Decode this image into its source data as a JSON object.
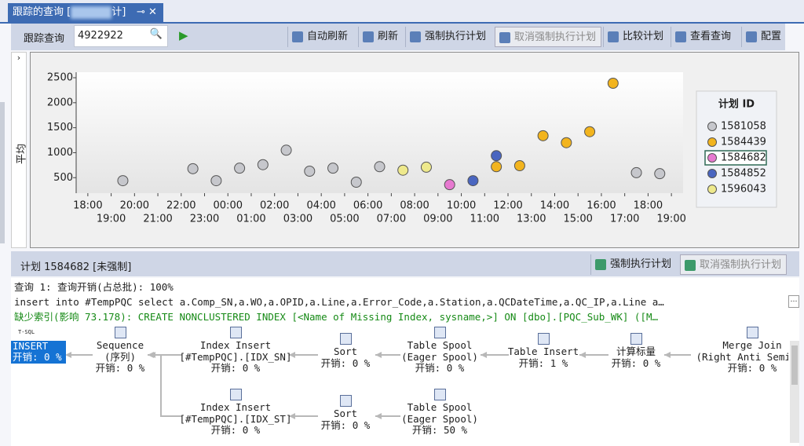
{
  "tab": {
    "title": "跟踪的查询 [",
    "title_end": "计]"
  },
  "toolbar": {
    "label": "跟踪查询",
    "query_id": "4922922",
    "buttons": [
      "自动刷新",
      "刷新",
      "强制执行计划",
      "取消强制执行计划",
      "比较计划",
      "查看查询",
      "配置"
    ]
  },
  "chart_data": {
    "type": "scatter",
    "y_label": "平均",
    "legend_title": "计划 ID",
    "legend_selected": 2,
    "xlim": [
      17.5,
      43.5
    ],
    "ylim": [
      190,
      2610
    ],
    "grid": false,
    "xticks": [
      {
        "value": 18,
        "label": "18:00"
      },
      {
        "value": 19,
        "label": "19:00"
      },
      {
        "value": 20,
        "label": "20:00"
      },
      {
        "value": 21,
        "label": "21:00"
      },
      {
        "value": 22,
        "label": "22:00"
      },
      {
        "value": 23,
        "label": "23:00"
      },
      {
        "value": 24,
        "label": "00:00"
      },
      {
        "value": 25,
        "label": "01:00"
      },
      {
        "value": 26,
        "label": "02:00"
      },
      {
        "value": 27,
        "label": "03:00"
      },
      {
        "value": 28,
        "label": "04:00"
      },
      {
        "value": 29,
        "label": "05:00"
      },
      {
        "value": 30,
        "label": "06:00"
      },
      {
        "value": 31,
        "label": "07:00"
      },
      {
        "value": 32,
        "label": "08:00"
      },
      {
        "value": 33,
        "label": "09:00"
      },
      {
        "value": 34,
        "label": "10:00"
      },
      {
        "value": 35,
        "label": "11:00"
      },
      {
        "value": 36,
        "label": "12:00"
      },
      {
        "value": 37,
        "label": "13:00"
      },
      {
        "value": 38,
        "label": "14:00"
      },
      {
        "value": 39,
        "label": "15:00"
      },
      {
        "value": 40,
        "label": "16:00"
      },
      {
        "value": 41,
        "label": "17:00"
      },
      {
        "value": 42,
        "label": "18:00"
      },
      {
        "value": 43,
        "label": "19:00"
      }
    ],
    "yticks": [
      500,
      1000,
      1500,
      2000,
      2500
    ],
    "series": [
      {
        "name": "1581058",
        "color": "#c6c7cc",
        "x": [
          19.5,
          22.5,
          23.5,
          24.5,
          25.5,
          26.5,
          27.5,
          28.5,
          29.5,
          30.5,
          41.5,
          42.5
        ],
        "values": [
          440,
          680,
          440,
          690,
          760,
          1050,
          630,
          690,
          410,
          720,
          600,
          580
        ]
      },
      {
        "name": "1584439",
        "color": "#f2b41e",
        "x": [
          35.5,
          36.5,
          37.5,
          38.5,
          39.5,
          40.5
        ],
        "values": [
          720,
          740,
          1340,
          1200,
          1420,
          2390
        ]
      },
      {
        "name": "1584682",
        "color": "#e779d0",
        "x": [
          33.5
        ],
        "values": [
          360
        ]
      },
      {
        "name": "1584852",
        "color": "#4a66c0",
        "x": [
          34.5,
          35.5
        ],
        "values": [
          440,
          940
        ]
      },
      {
        "name": "1596043",
        "color": "#eee98c",
        "x": [
          31.5,
          32.5
        ],
        "values": [
          650,
          710
        ]
      }
    ]
  },
  "plan": {
    "title": "计划 1584682 [未强制]",
    "buttons": [
      "强制执行计划",
      "取消强制执行计划"
    ],
    "lines": [
      "查询 1: 查询开销(占总批): 100%",
      "insert into #TempPQC select a.Comp_SN,a.WO,a.OPID,a.Line,a.Error_Code,a.Station,a.QCDateTime,a.QC_IP,a.Line a…",
      "缺少索引(影响 73.178): CREATE NONCLUSTERED INDEX [<Name of Missing Index, sysname,>] ON [dbo].[PQC_Sub_WK] ([M…"
    ],
    "nodes": [
      {
        "badge": "T-SQL",
        "name": "INSERT",
        "cost": "开销: 0 %"
      },
      {
        "name": "Sequence",
        "detail": "(序列)",
        "cost": "开销: 0 %"
      },
      {
        "name": "Index Insert",
        "detail": "[#TempPQC].[IDX_SN]",
        "cost": "开销: 0 %"
      },
      {
        "name": "Sort",
        "cost": "开销: 0 %"
      },
      {
        "name": "Table Spool",
        "detail": "(Eager Spool)",
        "cost": "开销: 0 %"
      },
      {
        "name": "Table Insert",
        "cost": "开销: 1 %"
      },
      {
        "name": "计算标量",
        "cost": "开销: 0 %"
      },
      {
        "name": "Merge Join",
        "detail": "(Right Anti Semi J…",
        "cost": "开销: 0 %"
      },
      {
        "name": "Index Insert",
        "detail": "[#TempPQC].[IDX_ST]",
        "cost": "开销: 0 %"
      },
      {
        "name": "Sort",
        "cost": "开销: 0 %"
      },
      {
        "name": "Table Spool",
        "detail": "(Eager Spool)",
        "cost": "开销: 50 %"
      }
    ]
  }
}
